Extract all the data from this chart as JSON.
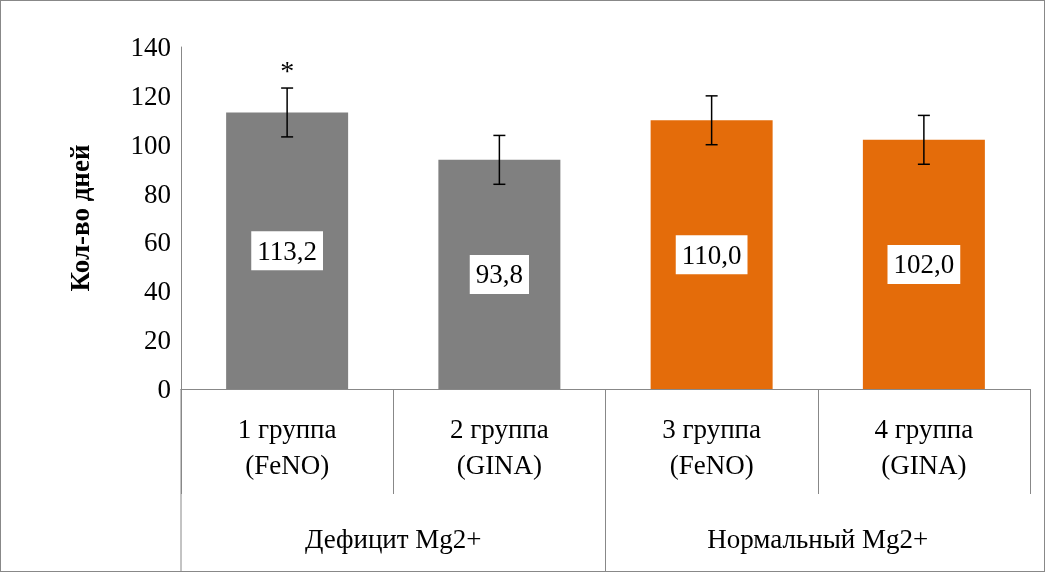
{
  "chart_data": {
    "type": "bar",
    "ylabel": "Кол-во дней",
    "categories": [
      "1 группа\n(FeNO)",
      "2 группа\n(GINA)",
      "3 группа\n(FeNO)",
      "4 группа\n(GINA)"
    ],
    "values": [
      113.2,
      93.8,
      110.0,
      102.0
    ],
    "colors": [
      "#808080",
      "#808080",
      "#e46c0a",
      "#e46c0a"
    ],
    "errors": [
      10,
      10,
      10,
      10
    ],
    "value_labels": [
      "113,2",
      "93,8",
      "110,0",
      "102,0"
    ],
    "ylim": [
      0,
      140
    ],
    "yticks": [
      0,
      20,
      40,
      60,
      80,
      100,
      120,
      140
    ],
    "grid": false,
    "annotations": [
      {
        "text": "*",
        "x": "1 группа\n(FeNO)",
        "y": 123
      },
      "Дефицит Mg2+",
      "Нормальный Mg2+"
    ]
  }
}
